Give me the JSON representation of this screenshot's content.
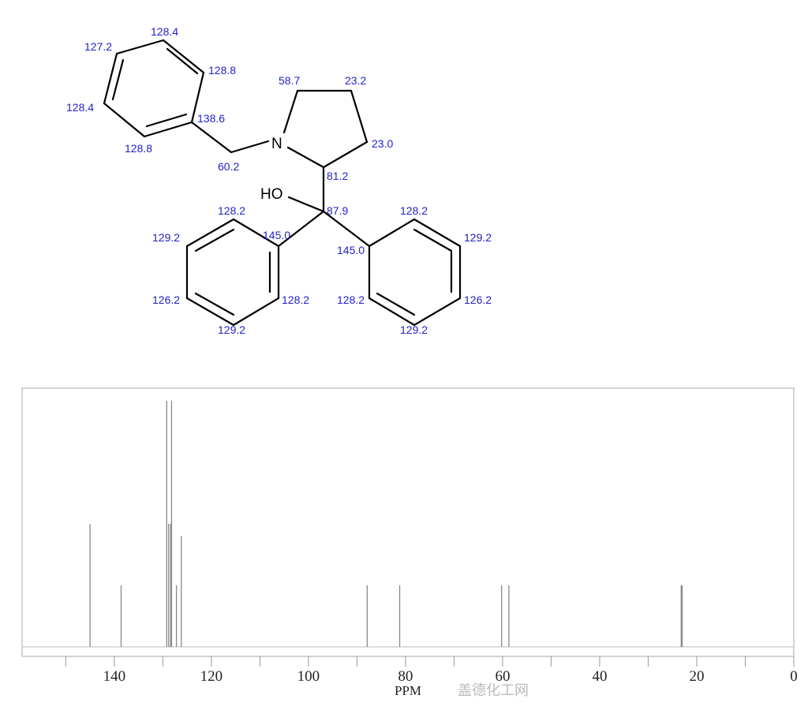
{
  "molecule": {
    "atoms": {
      "N": "N",
      "HO": "HO"
    },
    "shift_labels": [
      {
        "id": "bz-top",
        "text": "128.4"
      },
      {
        "id": "bz-ur",
        "text": "128.8"
      },
      {
        "id": "bz-ul",
        "text": "127.2"
      },
      {
        "id": "bz-ll",
        "text": "128.4"
      },
      {
        "id": "bz-ipso",
        "text": "138.6"
      },
      {
        "id": "bz-lo",
        "text": "128.8"
      },
      {
        "id": "ch2",
        "text": "60.2"
      },
      {
        "id": "c5",
        "text": "58.7"
      },
      {
        "id": "c4",
        "text": "23.2"
      },
      {
        "id": "c3",
        "text": "23.0"
      },
      {
        "id": "c2",
        "text": "81.2"
      },
      {
        "id": "coh",
        "text": "87.9"
      },
      {
        "id": "lp-o1",
        "text": "128.2"
      },
      {
        "id": "lp-m1",
        "text": "129.2"
      },
      {
        "id": "lp-ipso",
        "text": "145.0"
      },
      {
        "id": "lp-p",
        "text": "126.2"
      },
      {
        "id": "lp-o2",
        "text": "128.2"
      },
      {
        "id": "lp-m2",
        "text": "129.2"
      },
      {
        "id": "rp-o1",
        "text": "128.2"
      },
      {
        "id": "rp-m1",
        "text": "129.2"
      },
      {
        "id": "rp-ipso",
        "text": "145.0"
      },
      {
        "id": "rp-o2",
        "text": "128.2"
      },
      {
        "id": "rp-p",
        "text": "126.2"
      },
      {
        "id": "rp-m2",
        "text": "129.2"
      }
    ]
  },
  "chart_data": {
    "type": "bar",
    "title": "",
    "xlabel": "PPM",
    "ylabel": "",
    "xlim": [
      159,
      0
    ],
    "x_reversed": true,
    "x_ticks": [
      140,
      120,
      100,
      80,
      60,
      40,
      20,
      0
    ],
    "x_minor_ticks": [
      150,
      130,
      110,
      90,
      70,
      50,
      30,
      10
    ],
    "grid": false,
    "peaks": [
      {
        "ppm": 145.0,
        "intensity": 0.5
      },
      {
        "ppm": 138.6,
        "intensity": 0.25
      },
      {
        "ppm": 129.2,
        "intensity": 1.0
      },
      {
        "ppm": 128.8,
        "intensity": 0.5
      },
      {
        "ppm": 128.4,
        "intensity": 0.5
      },
      {
        "ppm": 128.2,
        "intensity": 1.0
      },
      {
        "ppm": 127.2,
        "intensity": 0.25
      },
      {
        "ppm": 126.2,
        "intensity": 0.45
      },
      {
        "ppm": 87.9,
        "intensity": 0.25
      },
      {
        "ppm": 81.2,
        "intensity": 0.25
      },
      {
        "ppm": 60.2,
        "intensity": 0.25
      },
      {
        "ppm": 58.7,
        "intensity": 0.25
      },
      {
        "ppm": 23.2,
        "intensity": 0.25
      },
      {
        "ppm": 23.0,
        "intensity": 0.25
      }
    ],
    "peak_color": "#888888",
    "frame_color": "#aaaaaa"
  },
  "watermark": "盖德化工网"
}
